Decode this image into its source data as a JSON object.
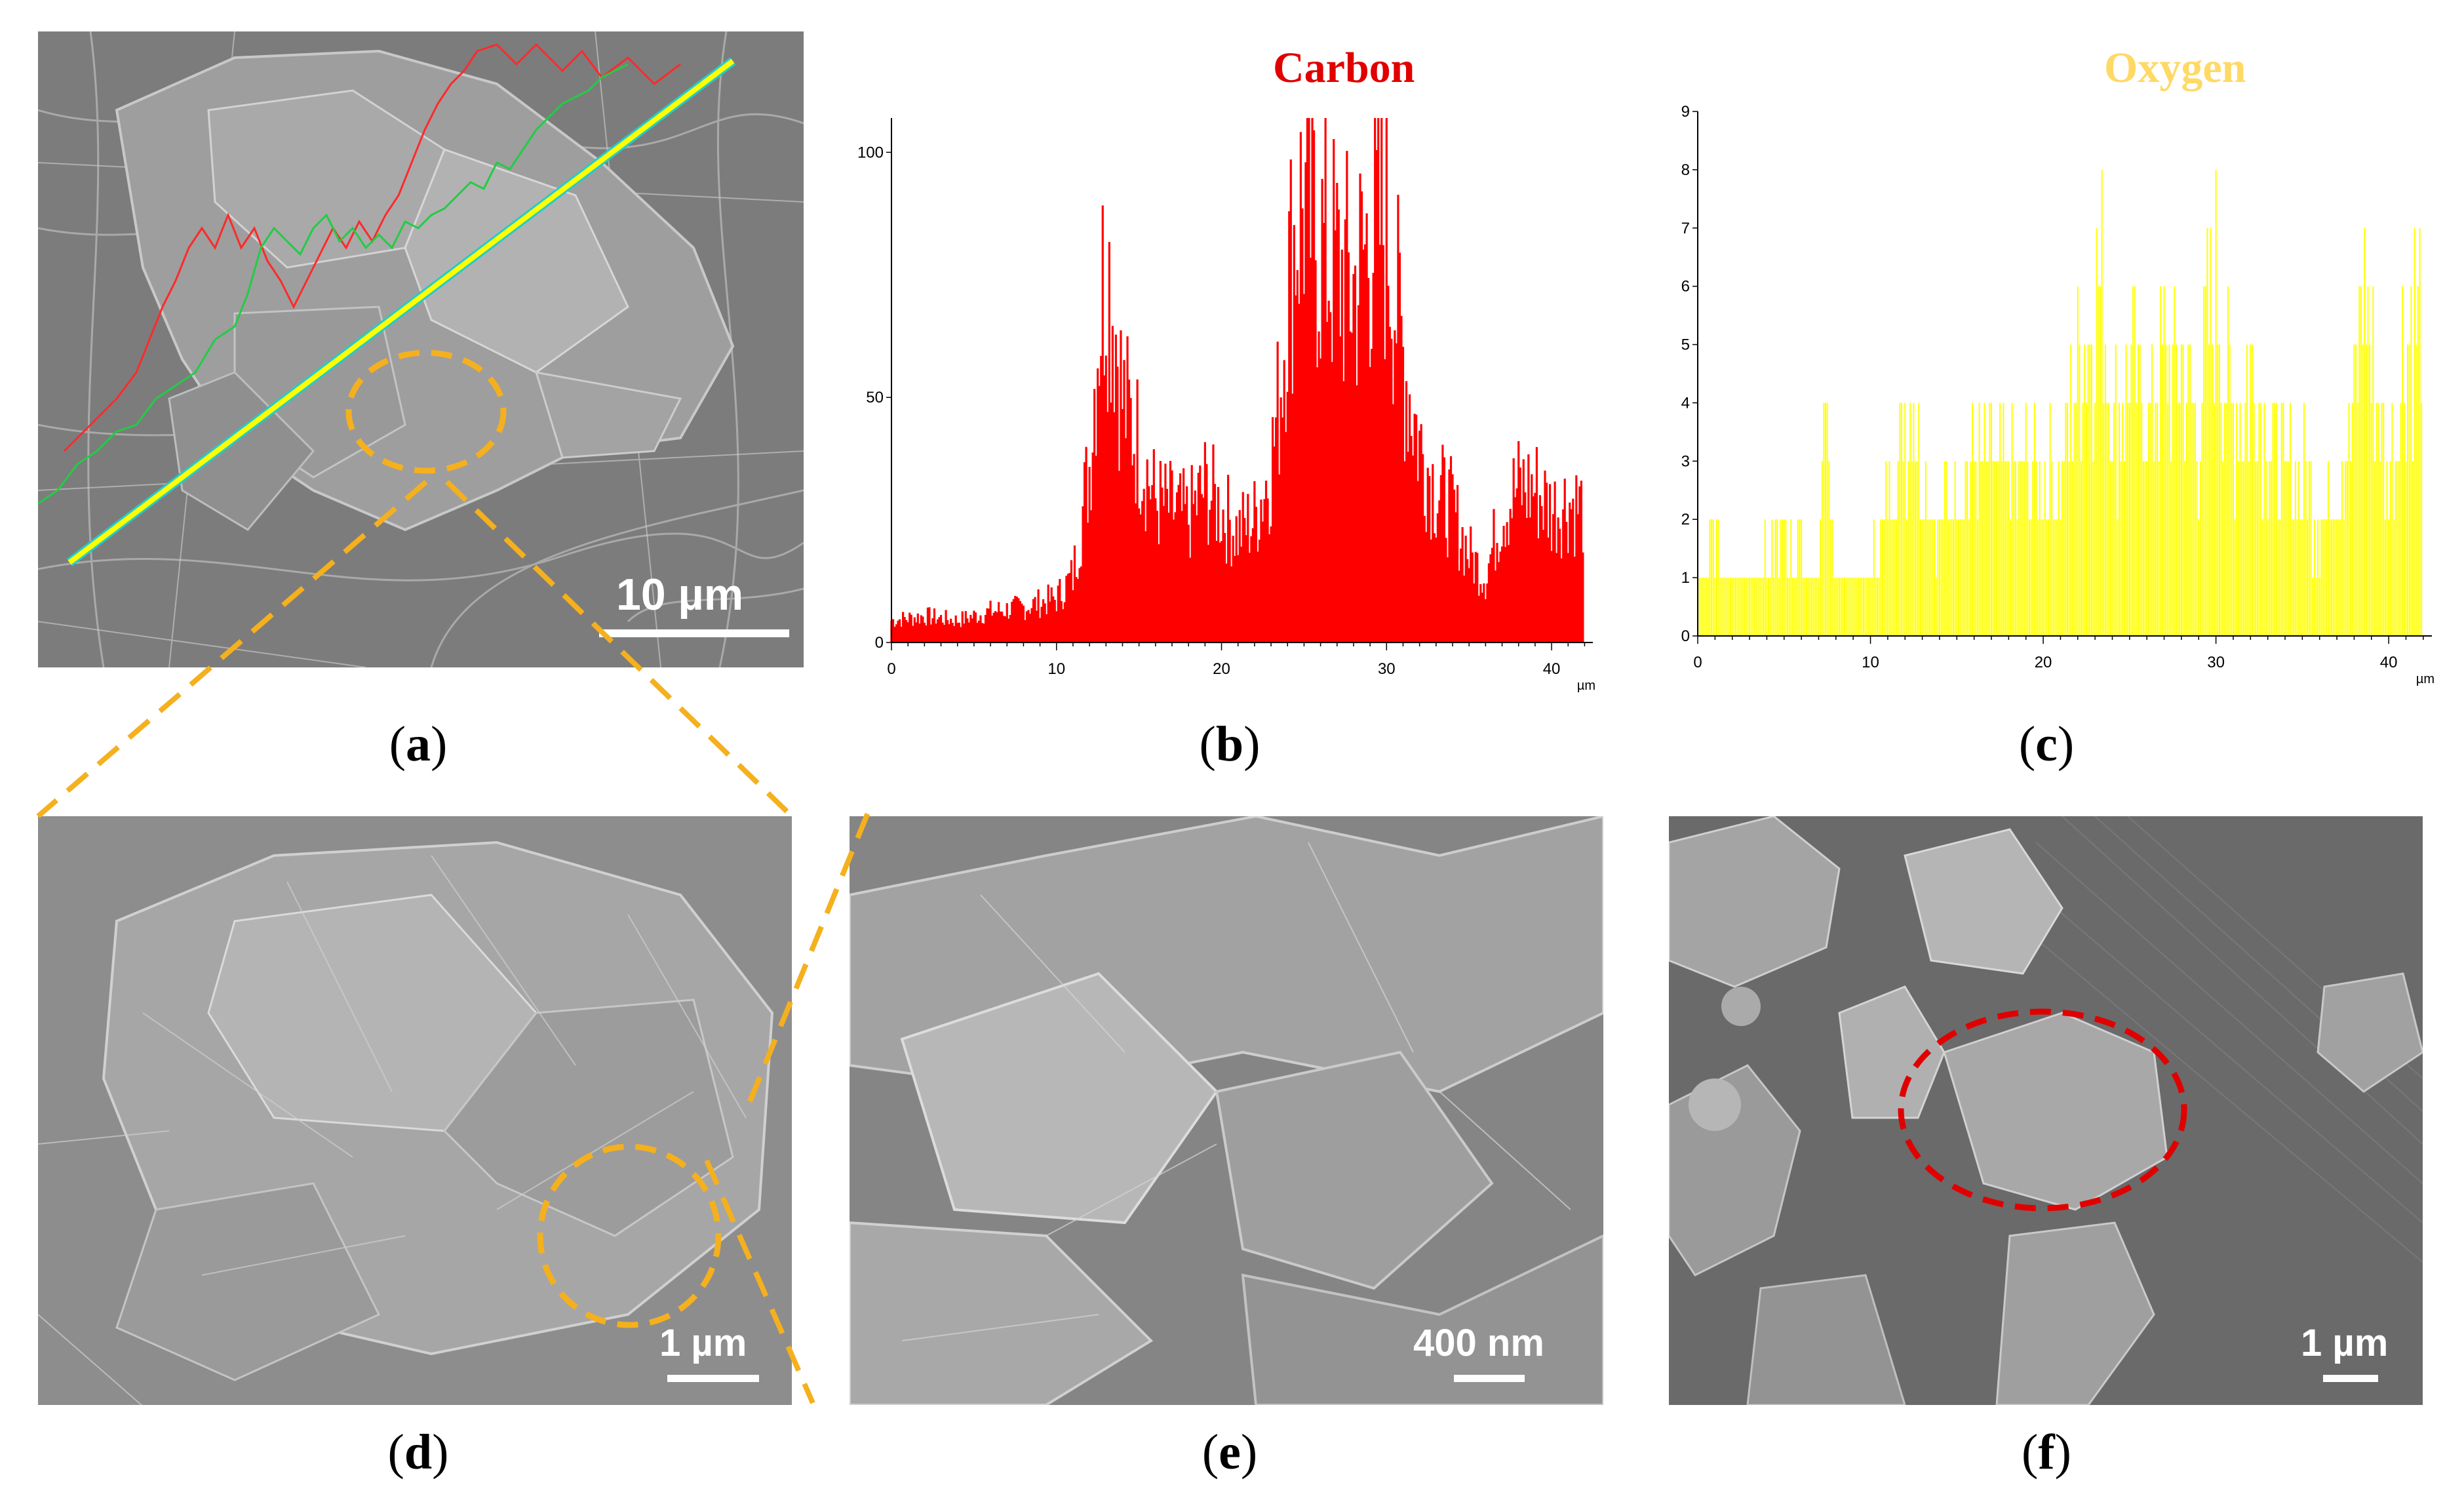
{
  "panels": {
    "a": {
      "label": "a",
      "scale_bar": "10 µm"
    },
    "b": {
      "label": "b"
    },
    "c": {
      "label": "c"
    },
    "d": {
      "label": "d",
      "scale_bar": "1 µm"
    },
    "e": {
      "label": "e",
      "scale_bar": "400 nm"
    },
    "f": {
      "label": "f",
      "scale_bar": "1 µm"
    }
  },
  "colors": {
    "carbon": "#ff0000",
    "oxygen": "#ffff00",
    "oxygen_title": "#ffd966",
    "highlight_orange": "#f5b01e",
    "highlight_red": "#e00000",
    "scan_line": "#ffff00"
  },
  "chart_data": [
    {
      "type": "bar",
      "title": "Carbon",
      "x_unit": "µm",
      "x_ticks": [
        "0",
        "10",
        "20",
        "30",
        "40"
      ],
      "y_ticks": [
        "0",
        "50",
        "100"
      ],
      "xlim": [
        0,
        42.5
      ],
      "ylim": [
        0,
        107
      ],
      "x": [
        0,
        2,
        4,
        6,
        8,
        10,
        11,
        12,
        12.5,
        13,
        13.5,
        14,
        15,
        16,
        17,
        18,
        19,
        20,
        21,
        22,
        23,
        23.5,
        24,
        24.5,
        25,
        25.5,
        26,
        27,
        28,
        29,
        30,
        31,
        32,
        33,
        34,
        35,
        36,
        37,
        38,
        39,
        40,
        41,
        42
      ],
      "y": [
        5,
        6,
        5,
        7,
        8,
        10,
        15,
        40,
        70,
        88,
        75,
        55,
        45,
        32,
        30,
        28,
        35,
        30,
        25,
        28,
        40,
        55,
        80,
        95,
        100,
        95,
        90,
        85,
        80,
        92,
        95,
        65,
        45,
        35,
        30,
        20,
        15,
        30,
        35,
        35,
        30,
        32,
        30
      ]
    },
    {
      "type": "bar",
      "title": "Oxygen",
      "x_unit": "µm",
      "x_ticks": [
        "0",
        "10",
        "20",
        "30",
        "40"
      ],
      "y_ticks": [
        "0",
        "1",
        "2",
        "3",
        "4",
        "5",
        "6",
        "7",
        "8",
        "9"
      ],
      "xlim": [
        0,
        42.5
      ],
      "ylim": [
        0,
        9
      ],
      "x": [
        0,
        1,
        2,
        3,
        5,
        7,
        7.2,
        8,
        10,
        12,
        12.5,
        13,
        14,
        15,
        17,
        19,
        21,
        22,
        23,
        23.5,
        24,
        25,
        26,
        27,
        28,
        29,
        30,
        31,
        32,
        33,
        34,
        35,
        36,
        37,
        38,
        38.5,
        39,
        40,
        41,
        42
      ],
      "y": [
        1,
        2,
        1,
        1,
        2,
        1,
        4,
        1,
        1,
        4,
        5,
        3,
        2,
        3,
        3,
        3,
        3,
        5,
        6,
        7,
        4,
        5,
        4,
        5,
        5,
        4,
        7,
        4,
        5,
        4,
        3,
        3,
        2,
        3,
        4,
        7,
        5,
        3,
        6,
        6
      ]
    }
  ]
}
